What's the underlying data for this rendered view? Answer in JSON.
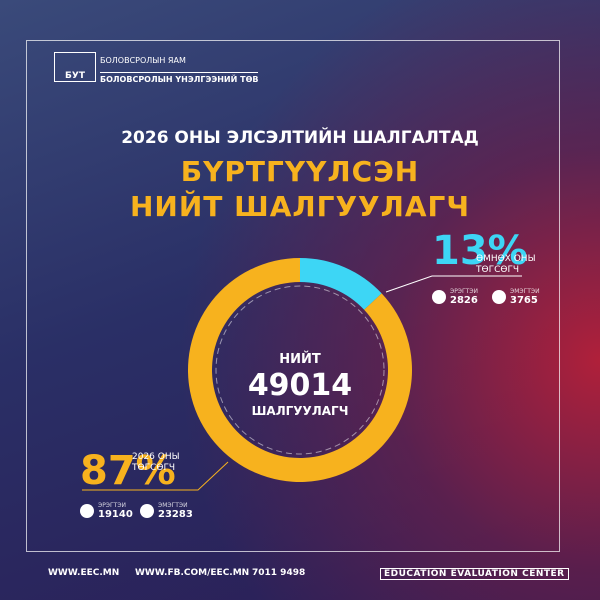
{
  "chart_data": {
    "type": "pie",
    "header": {
      "logo": "БУТ",
      "ministry": "БОЛОВСРОЛЫН ЯАМ",
      "center": "БОЛОВСРОЛЫН ҮНЭЛГЭЭНИЙ ТӨВ"
    },
    "title": "2026 ОНЫ ЭЛСЭЛТИЙН ШАЛГАЛТАД",
    "subtitle": [
      "БҮРТГҮҮЛСЭН",
      "НИЙТ ШАЛГУУЛАГЧ"
    ],
    "center": {
      "top": "НИЙТ",
      "value": 49014,
      "bottom": "ШАЛГУУЛАГЧ"
    },
    "categories": [
      "2026 ОНЫ ТӨГСӨГЧ",
      "ӨМНӨХ ОНЫ ТӨГСӨГЧ"
    ],
    "values": [
      87,
      13
    ],
    "value_labels": [
      "87%",
      "13%"
    ],
    "colors": [
      "#f7b21e",
      "#3dd6f5"
    ],
    "gender_labels": [
      "ЭРЭГТЭЙ",
      "ЭМЭГТЭЙ"
    ],
    "breakdown": [
      [
        19140,
        23283
      ],
      [
        2826,
        3765
      ]
    ],
    "footer": {
      "web": "WWW.EEC.MN",
      "facebook": "WWW.FB.COM/EEC.MN",
      "phone": "7011 9498",
      "tagline": "EDUCATION EVALUATION CENTER"
    }
  }
}
